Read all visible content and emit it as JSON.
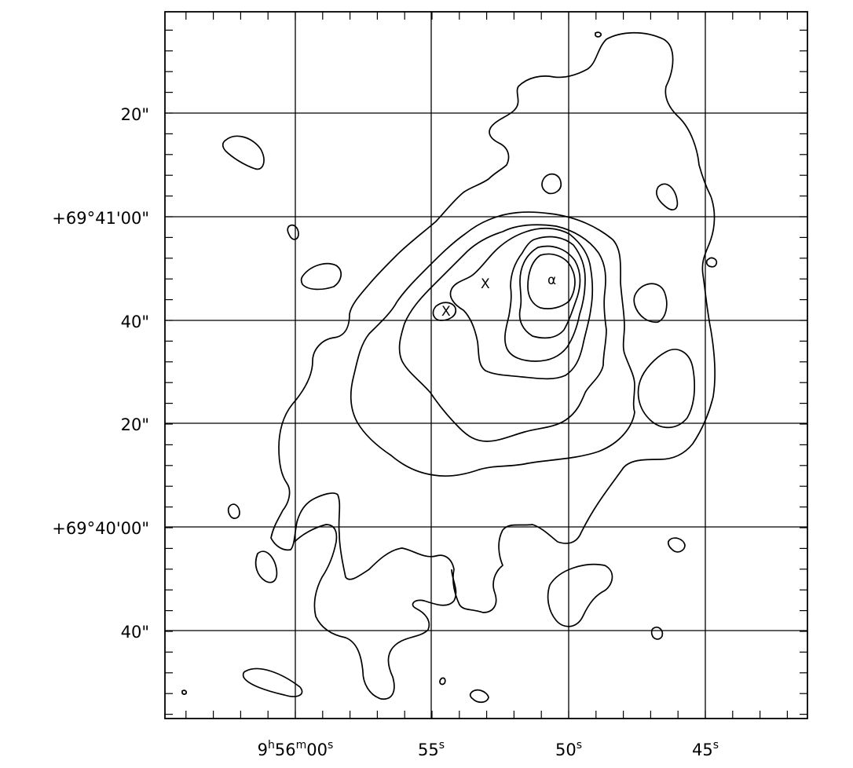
{
  "ra_labels": [
    {
      "h": "9",
      "hs": "h",
      "m": "56",
      "ms": "m",
      "s": "00",
      "ss": "s"
    },
    {
      "s": "55",
      "ss": "s"
    },
    {
      "s": "50",
      "ss": "s"
    },
    {
      "s": "45",
      "ss": "s"
    }
  ],
  "dec_labels": [
    "20\"",
    "+69°41'00\"",
    "40\"",
    "20\"",
    "+69°40'00\"",
    "40\""
  ],
  "markers": [
    {
      "name": "source-alpha",
      "label": "α"
    },
    {
      "name": "source-x1",
      "label": "X"
    },
    {
      "name": "source-x2",
      "label": "X"
    }
  ],
  "colors": {
    "ink": "#000000",
    "background": "#ffffff"
  }
}
